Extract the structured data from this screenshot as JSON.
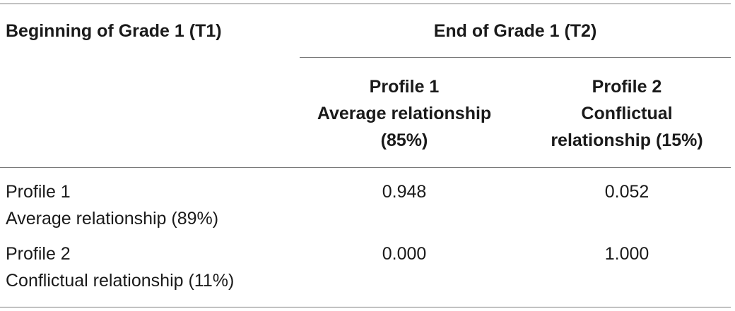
{
  "table": {
    "header": {
      "t1": "Beginning of Grade 1 (T1)",
      "t2": "End of Grade 1 (T2)",
      "col1": [
        "Profile 1",
        "Average relationship",
        "(85%)"
      ],
      "col2": [
        "Profile 2",
        "Conflictual",
        "relationship (15%)"
      ]
    },
    "rows": [
      {
        "label": [
          "Profile 1",
          "Average relationship (89%)"
        ],
        "values": [
          "0.948",
          "0.052"
        ]
      },
      {
        "label": [
          "Profile 2",
          "Conflictual relationship (11%)"
        ],
        "values": [
          "0.000",
          "1.000"
        ]
      }
    ]
  }
}
